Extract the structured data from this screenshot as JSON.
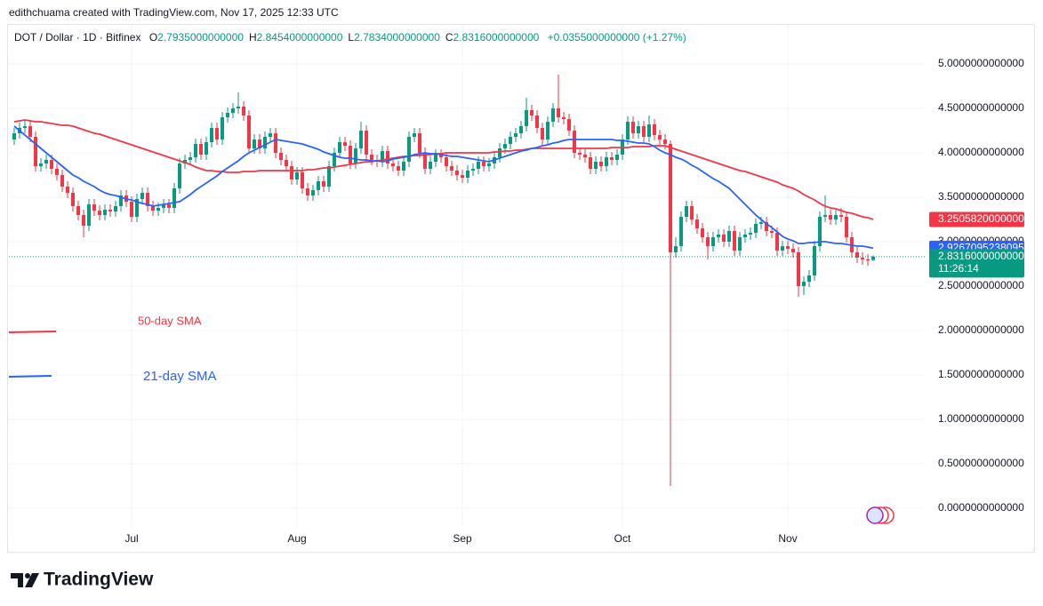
{
  "header": {
    "attribution": "edithchuama created with TradingView.com, Nov 17, 2025 12:33 UTC",
    "symbol": "DOT / Dollar · 1D · Bitfinex",
    "ohlc": [
      {
        "key": "O",
        "value": "2.7935000000000"
      },
      {
        "key": "H",
        "value": "2.8454000000000"
      },
      {
        "key": "L",
        "value": "2.7834000000000"
      },
      {
        "key": "C",
        "value": "2.8316000000000"
      }
    ],
    "change": "+0.0355000000000 (+1.27%)"
  },
  "chart_data": {
    "type": "candlestick",
    "categories": [
      null,
      null,
      null,
      null,
      null,
      null,
      null,
      null,
      null,
      null,
      null,
      null,
      null,
      null,
      null,
      null,
      null,
      null,
      null,
      null,
      null,
      null,
      "Jul",
      null,
      null,
      null,
      null,
      null,
      null,
      null,
      null,
      null,
      null,
      null,
      null,
      null,
      null,
      null,
      null,
      null,
      null,
      null,
      null,
      null,
      null,
      null,
      null,
      null,
      null,
      null,
      null,
      null,
      null,
      "Aug",
      null,
      null,
      null,
      null,
      null,
      null,
      null,
      null,
      null,
      null,
      null,
      null,
      null,
      null,
      null,
      null,
      null,
      null,
      null,
      null,
      null,
      null,
      null,
      null,
      null,
      null,
      null,
      null,
      null,
      null,
      "Sep",
      null,
      null,
      null,
      null,
      null,
      null,
      null,
      null,
      null,
      null,
      null,
      null,
      null,
      null,
      null,
      null,
      null,
      null,
      null,
      null,
      null,
      null,
      null,
      null,
      null,
      null,
      null,
      null,
      null,
      "Oct",
      null,
      null,
      null,
      null,
      null,
      null,
      null,
      null,
      null,
      null,
      null,
      null,
      null,
      null,
      null,
      null,
      null,
      null,
      null,
      null,
      null,
      null,
      null,
      null,
      null,
      null,
      null,
      null,
      null,
      null,
      "Nov",
      null,
      null,
      null,
      null,
      null,
      null,
      null,
      null,
      null,
      null,
      null,
      null,
      null,
      null,
      null,
      null
    ],
    "open": [
      4.15,
      4.22,
      4.28,
      4.3,
      4.18,
      3.85,
      3.88,
      3.92,
      3.82,
      3.75,
      3.62,
      3.55,
      3.4,
      3.3,
      3.18,
      3.42,
      3.35,
      3.3,
      3.36,
      3.34,
      3.4,
      3.52,
      3.45,
      3.28,
      3.48,
      3.55,
      3.4,
      3.35,
      3.38,
      3.42,
      3.38,
      3.6,
      3.88,
      3.92,
      3.95,
      4.1,
      3.98,
      4.12,
      4.28,
      4.15,
      4.4,
      4.45,
      4.5,
      4.52,
      4.42,
      4.05,
      4.15,
      4.05,
      4.18,
      4.22,
      4.0,
      3.92,
      3.85,
      3.7,
      3.78,
      3.6,
      3.52,
      3.58,
      3.68,
      3.62,
      3.85,
      4.0,
      4.12,
      4.08,
      3.88,
      4.05,
      4.25,
      3.98,
      3.92,
      3.9,
      4.02,
      3.88,
      3.85,
      3.8,
      3.9,
      4.18,
      4.22,
      4.0,
      3.82,
      3.9,
      3.98,
      3.95,
      3.85,
      3.8,
      3.75,
      3.72,
      3.8,
      3.82,
      3.9,
      3.85,
      3.88,
      3.95,
      4.05,
      4.1,
      4.18,
      4.22,
      4.3,
      4.48,
      4.42,
      4.28,
      4.15,
      4.35,
      4.5,
      4.4,
      4.38,
      4.25,
      4.0,
      3.98,
      3.95,
      3.82,
      3.9,
      3.85,
      3.95,
      3.92,
      3.98,
      4.15,
      4.35,
      4.22,
      4.3,
      4.18,
      4.32,
      4.2,
      4.15,
      4.1,
      2.88,
      2.95,
      3.28,
      3.4,
      3.25,
      3.15,
      3.05,
      2.95,
      3.05,
      3.08,
      3.0,
      3.12,
      2.9,
      3.05,
      3.08,
      3.1,
      3.2,
      3.22,
      3.12,
      3.1,
      2.9,
      2.95,
      2.92,
      2.88,
      2.5,
      2.55,
      2.62,
      2.95,
      3.28,
      3.3,
      3.25,
      3.3,
      3.28,
      3.05,
      2.88,
      2.82,
      2.8,
      2.7935
    ],
    "high": [
      4.28,
      4.34,
      4.36,
      4.36,
      4.24,
      3.94,
      3.98,
      3.98,
      3.88,
      3.81,
      3.68,
      3.61,
      3.46,
      3.36,
      3.48,
      3.48,
      3.41,
      3.42,
      3.42,
      3.46,
      3.58,
      3.58,
      3.51,
      3.54,
      3.61,
      3.61,
      3.46,
      3.44,
      3.48,
      3.48,
      3.66,
      3.94,
      3.98,
      4.01,
      4.16,
      4.16,
      4.18,
      4.34,
      4.34,
      4.46,
      4.51,
      4.56,
      4.68,
      4.58,
      4.48,
      4.21,
      4.21,
      4.24,
      4.28,
      4.28,
      4.06,
      3.98,
      3.91,
      3.84,
      3.84,
      3.66,
      3.64,
      3.74,
      3.74,
      3.91,
      4.06,
      4.18,
      4.18,
      4.14,
      4.11,
      4.35,
      4.31,
      4.04,
      3.98,
      4.08,
      4.08,
      3.94,
      3.91,
      3.96,
      4.24,
      4.28,
      4.28,
      4.06,
      3.96,
      4.04,
      4.04,
      4.01,
      3.91,
      3.86,
      3.81,
      3.86,
      3.88,
      3.96,
      3.96,
      3.94,
      4.01,
      4.11,
      4.16,
      4.24,
      4.28,
      4.36,
      4.62,
      4.54,
      4.48,
      4.34,
      4.41,
      4.56,
      4.88,
      4.46,
      4.44,
      4.31,
      4.06,
      4.04,
      4.01,
      3.96,
      3.96,
      4.01,
      4.01,
      4.04,
      4.21,
      4.41,
      4.41,
      4.36,
      4.36,
      4.42,
      4.38,
      4.26,
      4.21,
      4.14,
      3.05,
      3.34,
      3.46,
      3.46,
      3.31,
      3.21,
      3.11,
      3.11,
      3.14,
      3.14,
      3.18,
      3.18,
      3.11,
      3.14,
      3.16,
      3.26,
      3.28,
      3.28,
      3.18,
      3.16,
      3.01,
      3.01,
      2.98,
      2.94,
      2.61,
      2.68,
      3.01,
      3.34,
      3.52,
      3.36,
      3.36,
      3.38,
      3.34,
      3.11,
      2.94,
      2.88,
      2.86,
      2.8454
    ],
    "low": [
      4.09,
      4.16,
      4.22,
      4.12,
      3.79,
      3.79,
      3.82,
      3.76,
      3.69,
      3.56,
      3.49,
      3.34,
      3.24,
      3.05,
      3.12,
      3.29,
      3.24,
      3.24,
      3.28,
      3.28,
      3.34,
      3.39,
      3.22,
      3.22,
      3.42,
      3.34,
      3.29,
      3.29,
      3.32,
      3.32,
      3.32,
      3.54,
      3.82,
      3.86,
      3.89,
      3.92,
      3.92,
      4.06,
      4.09,
      4.09,
      4.34,
      4.39,
      4.44,
      4.36,
      3.99,
      3.99,
      3.99,
      3.99,
      4.12,
      3.94,
      3.86,
      3.79,
      3.64,
      3.64,
      3.54,
      3.46,
      3.46,
      3.52,
      3.56,
      3.56,
      3.79,
      3.94,
      4.02,
      3.82,
      3.82,
      3.99,
      3.92,
      3.86,
      3.84,
      3.84,
      3.82,
      3.79,
      3.74,
      3.74,
      3.84,
      4.12,
      3.94,
      3.76,
      3.76,
      3.84,
      3.89,
      3.79,
      3.74,
      3.69,
      3.66,
      3.66,
      3.74,
      3.76,
      3.79,
      3.79,
      3.82,
      3.89,
      3.99,
      4.04,
      4.12,
      4.16,
      4.24,
      4.36,
      4.22,
      4.09,
      4.09,
      4.29,
      4.34,
      4.32,
      4.19,
      3.94,
      3.92,
      3.89,
      3.76,
      3.76,
      3.79,
      3.79,
      3.86,
      3.86,
      3.92,
      4.09,
      4.16,
      4.16,
      4.12,
      4.12,
      4.14,
      4.09,
      4.04,
      0.25,
      2.82,
      2.89,
      3.22,
      3.19,
      3.09,
      2.99,
      2.8,
      2.89,
      2.99,
      2.94,
      2.94,
      2.84,
      2.84,
      2.99,
      3.02,
      3.04,
      3.14,
      3.06,
      3.04,
      2.84,
      2.84,
      2.86,
      2.82,
      2.38,
      2.4,
      2.49,
      2.56,
      2.89,
      3.22,
      3.19,
      3.19,
      3.22,
      2.99,
      2.82,
      2.76,
      2.74,
      2.73,
      2.7834
    ],
    "close": [
      4.22,
      4.28,
      4.3,
      4.18,
      3.85,
      3.88,
      3.92,
      3.82,
      3.75,
      3.62,
      3.55,
      3.4,
      3.3,
      3.18,
      3.42,
      3.35,
      3.3,
      3.36,
      3.34,
      3.4,
      3.52,
      3.45,
      3.28,
      3.48,
      3.55,
      3.4,
      3.35,
      3.38,
      3.42,
      3.38,
      3.6,
      3.88,
      3.92,
      3.95,
      4.1,
      3.98,
      4.12,
      4.28,
      4.15,
      4.4,
      4.45,
      4.5,
      4.52,
      4.42,
      4.05,
      4.15,
      4.05,
      4.18,
      4.22,
      4.0,
      3.92,
      3.85,
      3.7,
      3.78,
      3.6,
      3.52,
      3.58,
      3.68,
      3.62,
      3.85,
      4.0,
      4.12,
      4.08,
      3.88,
      4.05,
      4.25,
      3.98,
      3.92,
      3.9,
      4.02,
      3.88,
      3.85,
      3.8,
      3.9,
      4.18,
      4.22,
      4.0,
      3.82,
      3.9,
      3.98,
      3.95,
      3.85,
      3.8,
      3.75,
      3.72,
      3.8,
      3.82,
      3.9,
      3.85,
      3.88,
      3.95,
      4.05,
      4.1,
      4.18,
      4.22,
      4.3,
      4.48,
      4.42,
      4.28,
      4.15,
      4.35,
      4.5,
      4.4,
      4.38,
      4.25,
      4.0,
      3.98,
      3.95,
      3.82,
      3.9,
      3.85,
      3.95,
      3.92,
      3.98,
      4.15,
      4.35,
      4.22,
      4.3,
      4.18,
      4.32,
      4.2,
      4.15,
      4.1,
      2.88,
      2.95,
      3.28,
      3.4,
      3.25,
      3.15,
      3.05,
      2.95,
      3.05,
      3.08,
      3.0,
      3.12,
      2.9,
      3.05,
      3.08,
      3.1,
      3.2,
      3.22,
      3.12,
      3.1,
      2.9,
      2.95,
      2.92,
      2.88,
      2.5,
      2.55,
      2.62,
      2.95,
      3.28,
      3.3,
      3.25,
      3.3,
      3.28,
      3.05,
      2.88,
      2.82,
      2.8,
      2.7935,
      2.8316
    ],
    "up_color": "#089981",
    "down_color": "#f23645",
    "series": [
      {
        "name": "50-day SMA",
        "color": "#f23645",
        "last_label": "3.2505820000000",
        "values": [
          4.35,
          4.36,
          4.37,
          4.36,
          4.35,
          4.35,
          4.34,
          4.33,
          4.32,
          4.31,
          4.31,
          4.3,
          4.28,
          4.26,
          4.24,
          4.22,
          4.21,
          4.19,
          4.17,
          4.15,
          4.13,
          4.11,
          4.09,
          4.07,
          4.05,
          4.03,
          4.01,
          3.99,
          3.97,
          3.95,
          3.93,
          3.91,
          3.89,
          3.87,
          3.84,
          3.82,
          3.8,
          3.8,
          3.79,
          3.79,
          3.78,
          3.78,
          3.78,
          3.79,
          3.79,
          3.79,
          3.8,
          3.8,
          3.8,
          3.8,
          3.8,
          3.8,
          3.8,
          3.8,
          3.8,
          3.81,
          3.81,
          3.82,
          3.83,
          3.83,
          3.84,
          3.85,
          3.86,
          3.87,
          3.88,
          3.89,
          3.9,
          3.9,
          3.91,
          3.92,
          3.93,
          3.94,
          3.95,
          3.96,
          3.96,
          3.97,
          3.97,
          3.98,
          3.98,
          3.99,
          3.99,
          4.0,
          4.0,
          4.0,
          4.0,
          4.0,
          4.0,
          4.0,
          4.0,
          4.0,
          4.01,
          4.01,
          4.02,
          4.02,
          4.03,
          4.03,
          4.04,
          4.05,
          4.05,
          4.05,
          4.05,
          4.05,
          4.05,
          4.05,
          4.05,
          4.05,
          4.05,
          4.05,
          4.05,
          4.05,
          4.05,
          4.05,
          4.06,
          4.06,
          4.06,
          4.06,
          4.07,
          4.07,
          4.07,
          4.07,
          4.08,
          4.08,
          4.08,
          4.06,
          4.04,
          4.02,
          4.0,
          3.98,
          3.96,
          3.94,
          3.92,
          3.9,
          3.88,
          3.86,
          3.84,
          3.82,
          3.8,
          3.79,
          3.77,
          3.75,
          3.73,
          3.71,
          3.69,
          3.67,
          3.64,
          3.62,
          3.6,
          3.57,
          3.53,
          3.5,
          3.47,
          3.43,
          3.4,
          3.38,
          3.37,
          3.35,
          3.33,
          3.32,
          3.3,
          3.28,
          3.27,
          3.250582
        ]
      },
      {
        "name": "21-day SMA",
        "color": "#2962ff",
        "last_label": "2.9267095238095",
        "values": [
          4.3,
          4.25,
          4.2,
          4.15,
          4.1,
          4.05,
          4.0,
          3.95,
          3.9,
          3.85,
          3.8,
          3.75,
          3.72,
          3.68,
          3.65,
          3.62,
          3.58,
          3.55,
          3.53,
          3.52,
          3.5,
          3.48,
          3.47,
          3.45,
          3.43,
          3.42,
          3.4,
          3.41,
          3.42,
          3.43,
          3.44,
          3.45,
          3.49,
          3.53,
          3.58,
          3.62,
          3.66,
          3.7,
          3.74,
          3.79,
          3.83,
          3.87,
          3.91,
          3.96,
          4.0,
          4.03,
          4.06,
          4.09,
          4.12,
          4.15,
          4.14,
          4.13,
          4.12,
          4.11,
          4.1,
          4.08,
          4.06,
          4.04,
          4.01,
          3.99,
          3.97,
          3.95,
          3.94,
          3.94,
          3.93,
          3.92,
          3.92,
          3.91,
          3.91,
          3.9,
          3.91,
          3.93,
          3.94,
          3.95,
          3.96,
          3.98,
          3.99,
          4.0,
          3.99,
          3.99,
          3.98,
          3.97,
          3.96,
          3.96,
          3.95,
          3.94,
          3.93,
          3.92,
          3.91,
          3.9,
          3.92,
          3.94,
          3.96,
          3.98,
          4.0,
          4.02,
          4.03,
          4.05,
          4.06,
          4.08,
          4.09,
          4.11,
          4.12,
          4.14,
          4.15,
          4.15,
          4.15,
          4.15,
          4.15,
          4.15,
          4.15,
          4.15,
          4.15,
          4.14,
          4.14,
          4.13,
          4.12,
          4.11,
          4.11,
          4.1,
          4.07,
          4.03,
          4.0,
          3.98,
          3.95,
          3.93,
          3.9,
          3.86,
          3.83,
          3.79,
          3.75,
          3.71,
          3.68,
          3.64,
          3.6,
          3.54,
          3.48,
          3.42,
          3.36,
          3.3,
          3.25,
          3.2,
          3.16,
          3.11,
          3.06,
          3.03,
          3.01,
          2.98,
          2.98,
          2.99,
          2.99,
          3.0,
          3.0,
          2.99,
          2.98,
          2.98,
          2.97,
          2.96,
          2.95,
          2.95,
          2.94,
          2.9267095238095
        ]
      }
    ],
    "last_price_label": "2.8316000000000",
    "countdown": "11:26:14",
    "ylim": [
      -0.22,
      5.44
    ],
    "yticks": [
      {
        "value": 0,
        "label": "0.0000000000000"
      },
      {
        "value": 0.5,
        "label": "0.5000000000000"
      },
      {
        "value": 1,
        "label": "1.0000000000000"
      },
      {
        "value": 1.5,
        "label": "1.5000000000000"
      },
      {
        "value": 2,
        "label": "2.0000000000000"
      },
      {
        "value": 2.5,
        "label": "2.5000000000000"
      },
      {
        "value": 3,
        "label": "3.0000000000000"
      },
      {
        "value": 3.5,
        "label": "3.5000000000000"
      },
      {
        "value": 4,
        "label": "4.0000000000000"
      },
      {
        "value": 4.5,
        "label": "4.5000000000000"
      },
      {
        "value": 5,
        "label": "5.0000000000000"
      }
    ],
    "grid": true
  },
  "footer": {
    "logo": "TradingView"
  }
}
